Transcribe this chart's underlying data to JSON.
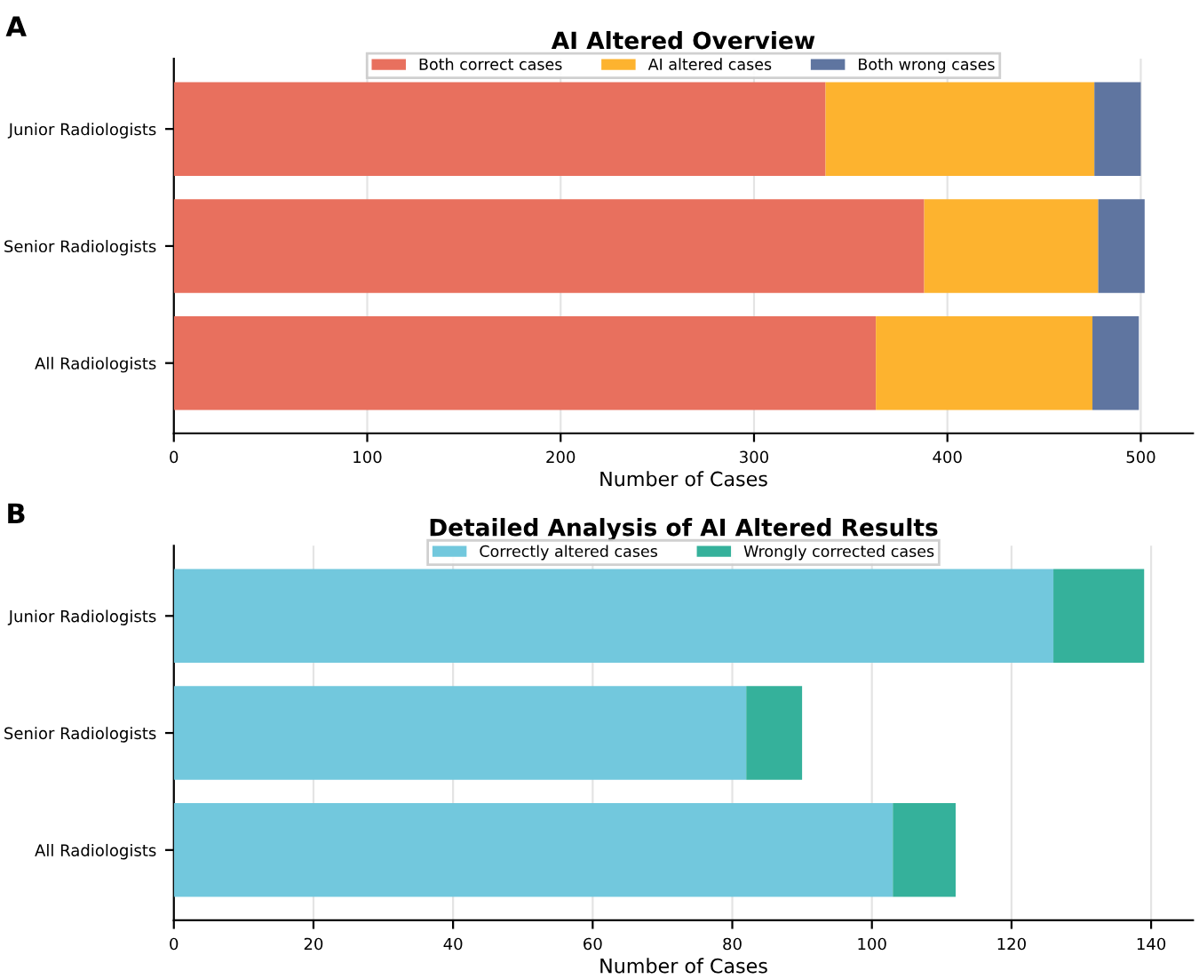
{
  "chart_data": [
    {
      "type": "bar",
      "orientation": "horizontal",
      "stacked": true,
      "title": "AI Altered Overview",
      "xlabel": "Number of Cases",
      "annotations": [
        "A"
      ],
      "categories": [
        "Junior Radiologists",
        "Senior Radiologists",
        "All Radiologists"
      ],
      "series": [
        {
          "name": "Both correct cases",
          "color": "#e8705e",
          "values": [
            337,
            388,
            363
          ]
        },
        {
          "name": "AI altered cases",
          "color": "#fdb32f",
          "values": [
            139,
            90,
            112
          ]
        },
        {
          "name": "Both wrong cases",
          "color": "#5f75a0",
          "values": [
            24,
            24,
            24
          ]
        }
      ],
      "xlim": [
        0,
        527
      ],
      "xticks": [
        0,
        100,
        200,
        300,
        400,
        500
      ],
      "grid": "x",
      "legend": "top"
    },
    {
      "type": "bar",
      "orientation": "horizontal",
      "stacked": true,
      "title": "Detailed Analysis of AI Altered Results",
      "xlabel": "Number of Cases",
      "annotations": [
        "B"
      ],
      "categories": [
        "Junior Radiologists",
        "Senior Radiologists",
        "All Radiologists"
      ],
      "series": [
        {
          "name": "Correctly altered cases",
          "color": "#72c8dd",
          "values": [
            126,
            82,
            103
          ]
        },
        {
          "name": "Wrongly corrected cases",
          "color": "#35b19b",
          "values": [
            13,
            8,
            9
          ]
        }
      ],
      "xlim": [
        0,
        146
      ],
      "xticks": [
        0,
        20,
        40,
        60,
        80,
        100,
        120,
        140
      ],
      "grid": "x",
      "legend": "top"
    }
  ]
}
